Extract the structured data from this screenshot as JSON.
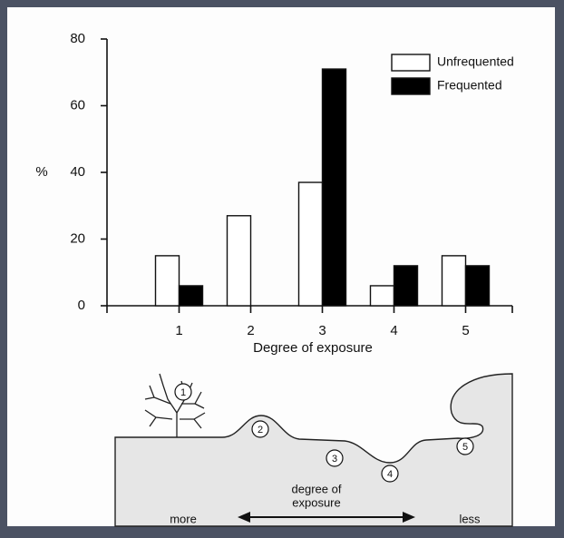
{
  "chart_data": {
    "type": "bar",
    "ylabel": "%",
    "xlabel": "Degree of exposure",
    "categories": [
      "1",
      "2",
      "3",
      "4",
      "5"
    ],
    "series": [
      {
        "name": "Unfrequented",
        "color": "#ffffff",
        "values": [
          15,
          27,
          37,
          6,
          15
        ]
      },
      {
        "name": "Frequented",
        "color": "#000000",
        "values": [
          6,
          0,
          71,
          12,
          12
        ]
      }
    ],
    "ylim": [
      0,
      80
    ],
    "yticks": [
      0,
      20,
      40,
      60,
      80
    ],
    "legend": "top-right"
  },
  "diagram": {
    "markers": [
      "1",
      "2",
      "3",
      "4",
      "5"
    ],
    "arrow_label_top": "degree of",
    "arrow_label_bottom": "exposure",
    "left_label": "more",
    "right_label": "less"
  }
}
